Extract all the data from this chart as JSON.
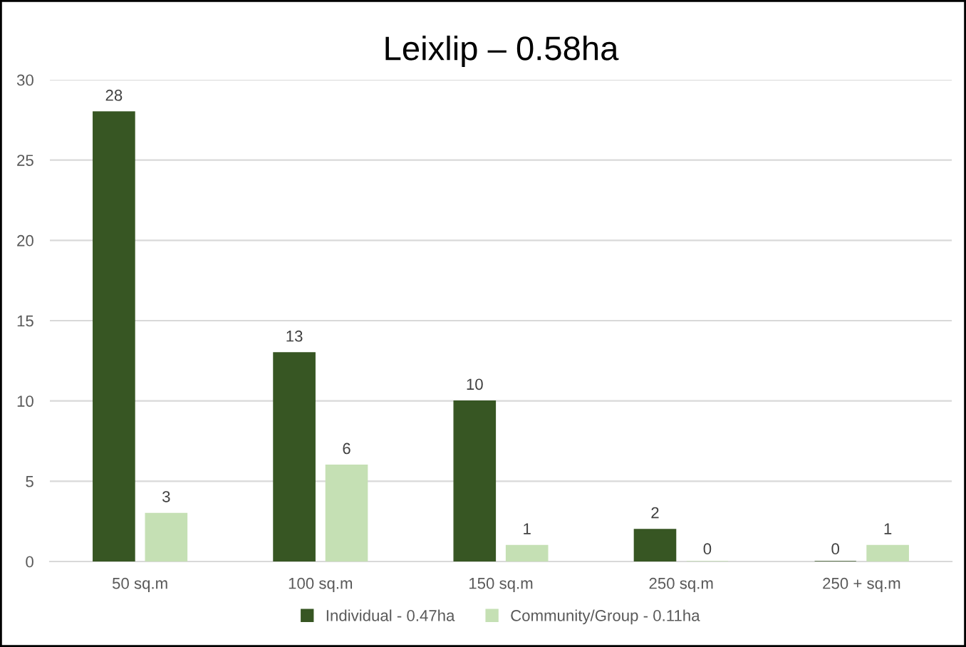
{
  "chart_data": {
    "type": "bar",
    "title": "Leixlip – 0.58ha",
    "categories": [
      "50 sq.m",
      "100 sq.m",
      "150 sq.m",
      "250 sq.m",
      "250 + sq.m"
    ],
    "series": [
      {
        "name": "Individual - 0.47ha",
        "color": "#375623",
        "values": [
          28,
          13,
          10,
          2,
          0
        ]
      },
      {
        "name": "Community/Group - 0.11ha",
        "color": "#c5e0b4",
        "values": [
          3,
          6,
          1,
          0,
          1
        ]
      }
    ],
    "ylim": [
      0,
      30
    ],
    "yticks": [
      0,
      5,
      10,
      15,
      20,
      25,
      30
    ],
    "grid": "y",
    "legend": "bottom",
    "data_labels": true
  }
}
